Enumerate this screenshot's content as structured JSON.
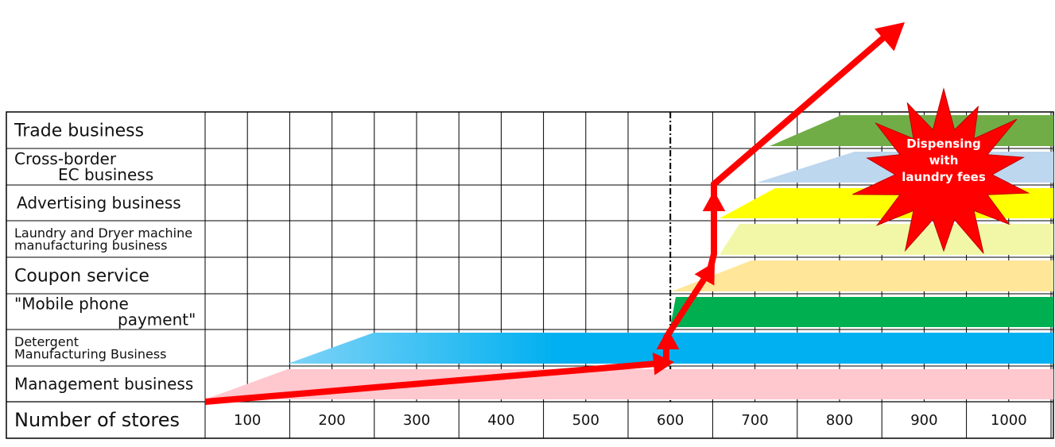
{
  "rows": [
    {
      "label_lines": [
        "Trade business"
      ],
      "size": "big",
      "color": "#70AD47"
    },
    {
      "label_lines": [
        "Cross-border",
        "EC business"
      ],
      "size": "mid",
      "color": "#BDD7EE"
    },
    {
      "label_lines": [
        "Advertising business"
      ],
      "size": "mid",
      "color": "#FFFF00"
    },
    {
      "label_lines": [
        "Laundry and Dryer machine",
        "manufacturing business"
      ],
      "size": "small",
      "color": "#F2F7A8"
    },
    {
      "label_lines": [
        "Coupon service"
      ],
      "size": "big",
      "color": "#FFE699"
    },
    {
      "label_lines": [
        "\"Mobile phone",
        "payment\""
      ],
      "size": "mid",
      "color": "#00B050"
    },
    {
      "label_lines": [
        "Detergent",
        "Manufacturing Business"
      ],
      "size": "small",
      "color": "#00B0F0"
    },
    {
      "label_lines": [
        "Management business"
      ],
      "size": "mid",
      "color": "#FFC7CE"
    }
  ],
  "axis": {
    "label": "Number of stores",
    "ticks": [
      "100",
      "200",
      "300",
      "400",
      "500",
      "600",
      "700",
      "800",
      "900",
      "1000"
    ]
  },
  "callout": {
    "lines": [
      "Dispensing",
      "with",
      "laundry fees"
    ],
    "fill": "#FF0000"
  },
  "arrow_color": "#FF0000"
}
